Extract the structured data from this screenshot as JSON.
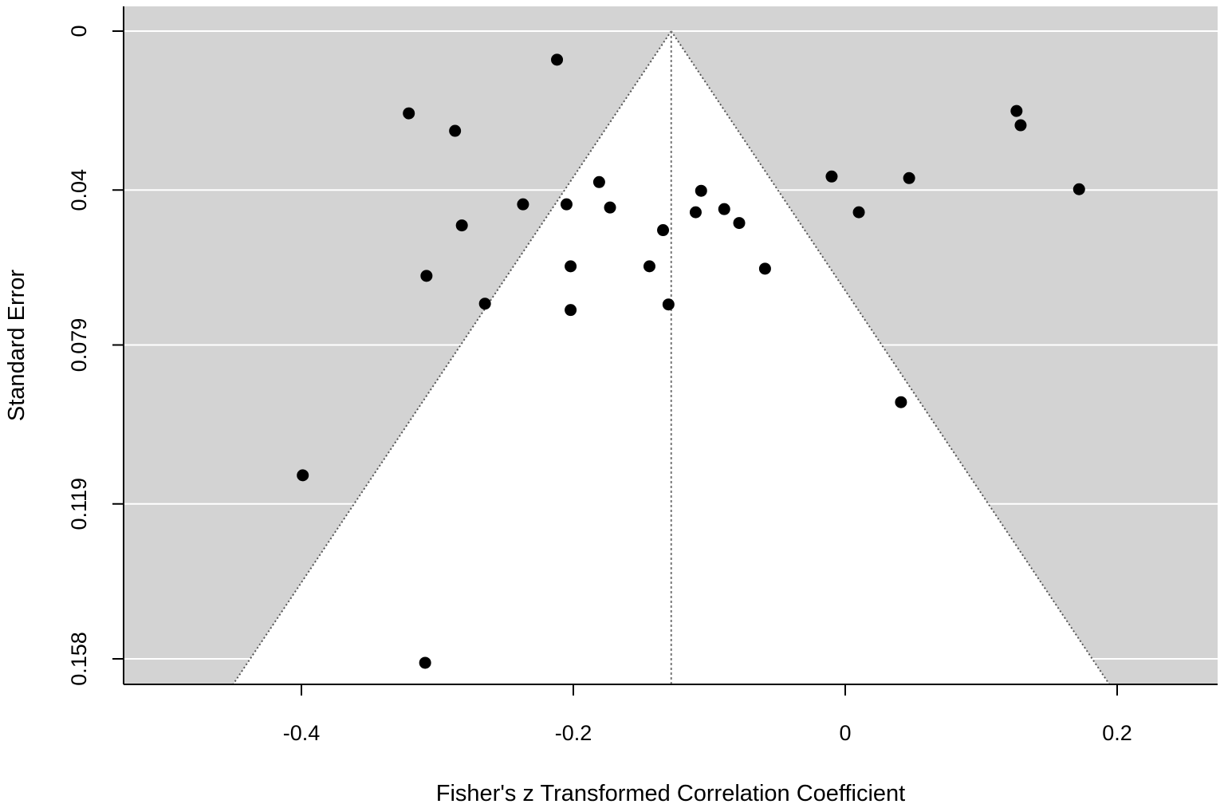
{
  "chart_data": {
    "type": "scatter",
    "subtype": "funnel-plot",
    "title": "",
    "xlabel": "Fisher's z Transformed Correlation Coefficient",
    "ylabel": "Standard Error",
    "xlim": [
      -0.5,
      0.27
    ],
    "ylim": [
      0,
      0.1645
    ],
    "y_reversed": true,
    "x_ticks": [
      -0.4,
      -0.2,
      0,
      0.2
    ],
    "x_tick_labels": [
      "-0.4",
      "-0.2",
      "0",
      "0.2"
    ],
    "y_ticks": [
      0,
      0.04,
      0.079,
      0.119,
      0.158
    ],
    "y_tick_labels": [
      "0",
      "0.04",
      "0.079",
      "0.119",
      "0.158"
    ],
    "grid": "horizontal",
    "pooled_estimate": -0.128,
    "colors": {
      "outer_region": "#d3d3d3",
      "funnel": "#ffffff",
      "gridline": "#ffffff",
      "points": "#000000"
    },
    "points": [
      {
        "x": -0.212,
        "y": 0.0072
      },
      {
        "x": -0.321,
        "y": 0.0207
      },
      {
        "x": -0.287,
        "y": 0.0251
      },
      {
        "x": 0.126,
        "y": 0.0201
      },
      {
        "x": 0.129,
        "y": 0.0237
      },
      {
        "x": -0.01,
        "y": 0.0366
      },
      {
        "x": 0.047,
        "y": 0.037
      },
      {
        "x": 0.172,
        "y": 0.0398
      },
      {
        "x": -0.181,
        "y": 0.038
      },
      {
        "x": -0.106,
        "y": 0.0402
      },
      {
        "x": -0.237,
        "y": 0.0436
      },
      {
        "x": -0.205,
        "y": 0.0436
      },
      {
        "x": -0.173,
        "y": 0.0444
      },
      {
        "x": -0.089,
        "y": 0.0448
      },
      {
        "x": -0.11,
        "y": 0.0456
      },
      {
        "x": 0.01,
        "y": 0.0456
      },
      {
        "x": -0.078,
        "y": 0.0483
      },
      {
        "x": -0.282,
        "y": 0.0489
      },
      {
        "x": -0.134,
        "y": 0.0501
      },
      {
        "x": -0.202,
        "y": 0.0592
      },
      {
        "x": -0.144,
        "y": 0.0592
      },
      {
        "x": -0.059,
        "y": 0.0598
      },
      {
        "x": -0.308,
        "y": 0.0616
      },
      {
        "x": -0.265,
        "y": 0.0686
      },
      {
        "x": -0.13,
        "y": 0.0688
      },
      {
        "x": -0.202,
        "y": 0.0702
      },
      {
        "x": 0.041,
        "y": 0.0934
      },
      {
        "x": -0.399,
        "y": 0.1118
      },
      {
        "x": -0.309,
        "y": 0.159
      }
    ]
  }
}
